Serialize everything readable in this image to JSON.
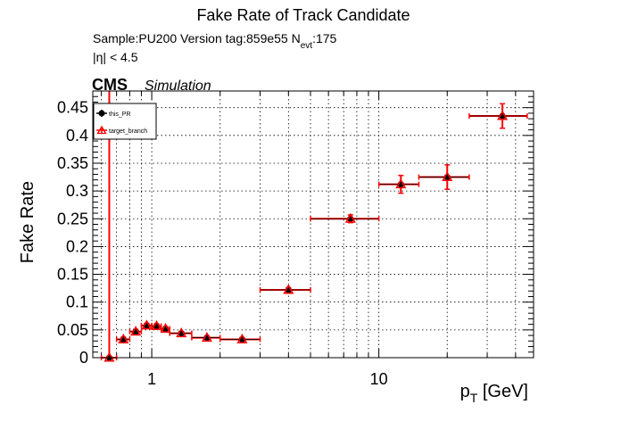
{
  "title": "Fake Rate of Track Candidate",
  "info": {
    "sample_line_pre": "Sample:PU200   Version tag:859e55  N",
    "nevt_sub": "evt",
    "nevt_value": ":175",
    "eta_cut": "|η| < 4.5"
  },
  "cms": {
    "label": "CMS",
    "sublabel": "Simulation"
  },
  "legend": [
    {
      "name": "this_PR",
      "color": "#000000",
      "marker": "circle"
    },
    {
      "name": "target_branch",
      "color": "#ff0000",
      "marker": "open-triangle"
    }
  ],
  "chart_data": {
    "type": "scatter",
    "title": "Fake Rate of Track Candidate",
    "xlabel": "p",
    "xlabel_sub": "T",
    "xlabel_unit": " [GeV]",
    "ylabel": "Fake Rate",
    "xscale": "log",
    "xlim": [
      0.55,
      48
    ],
    "ylim": [
      0,
      0.48
    ],
    "grid": true,
    "legend_position": "top-left",
    "xticks": [
      {
        "value": 1,
        "label": "1"
      },
      {
        "value": 10,
        "label": "10"
      }
    ],
    "yticks": [
      {
        "value": 0,
        "label": "0"
      },
      {
        "value": 0.05,
        "label": "0.05"
      },
      {
        "value": 0.1,
        "label": "0.1"
      },
      {
        "value": 0.15,
        "label": "0.15"
      },
      {
        "value": 0.2,
        "label": "0.2"
      },
      {
        "value": 0.25,
        "label": "0.25"
      },
      {
        "value": 0.3,
        "label": "0.3"
      },
      {
        "value": 0.35,
        "label": "0.35"
      },
      {
        "value": 0.4,
        "label": "0.4"
      },
      {
        "value": 0.45,
        "label": "0.45"
      }
    ],
    "bins": [
      {
        "xlo": 0.6,
        "xhi": 0.7,
        "x": 0.65,
        "y": 0.0,
        "yerr_lo": 0.0,
        "yerr_hi": 0.48
      },
      {
        "xlo": 0.7,
        "xhi": 0.8,
        "x": 0.75,
        "y": 0.033,
        "yerr_lo": 0.004,
        "yerr_hi": 0.004
      },
      {
        "xlo": 0.8,
        "xhi": 0.9,
        "x": 0.85,
        "y": 0.047,
        "yerr_lo": 0.004,
        "yerr_hi": 0.004
      },
      {
        "xlo": 0.9,
        "xhi": 1.0,
        "x": 0.95,
        "y": 0.058,
        "yerr_lo": 0.004,
        "yerr_hi": 0.004
      },
      {
        "xlo": 1.0,
        "xhi": 1.1,
        "x": 1.05,
        "y": 0.057,
        "yerr_lo": 0.004,
        "yerr_hi": 0.004
      },
      {
        "xlo": 1.1,
        "xhi": 1.2,
        "x": 1.15,
        "y": 0.052,
        "yerr_lo": 0.004,
        "yerr_hi": 0.004
      },
      {
        "xlo": 1.2,
        "xhi": 1.5,
        "x": 1.35,
        "y": 0.044,
        "yerr_lo": 0.003,
        "yerr_hi": 0.003
      },
      {
        "xlo": 1.5,
        "xhi": 2.0,
        "x": 1.75,
        "y": 0.036,
        "yerr_lo": 0.003,
        "yerr_hi": 0.003
      },
      {
        "xlo": 2.0,
        "xhi": 3.0,
        "x": 2.5,
        "y": 0.033,
        "yerr_lo": 0.003,
        "yerr_hi": 0.003
      },
      {
        "xlo": 3.0,
        "xhi": 5.0,
        "x": 4.0,
        "y": 0.122,
        "yerr_lo": 0.004,
        "yerr_hi": 0.004
      },
      {
        "xlo": 5.0,
        "xhi": 10.0,
        "x": 7.5,
        "y": 0.25,
        "yerr_lo": 0.007,
        "yerr_hi": 0.007
      },
      {
        "xlo": 10.0,
        "xhi": 15.0,
        "x": 12.5,
        "y": 0.312,
        "yerr_lo": 0.016,
        "yerr_hi": 0.016
      },
      {
        "xlo": 15.0,
        "xhi": 25.0,
        "x": 20.0,
        "y": 0.325,
        "yerr_lo": 0.022,
        "yerr_hi": 0.022
      },
      {
        "xlo": 25.0,
        "xhi": 45.0,
        "x": 35.0,
        "y": 0.435,
        "yerr_lo": 0.022,
        "yerr_hi": 0.022
      }
    ],
    "series": [
      {
        "name": "this_PR",
        "color": "#000000",
        "marker": "circle"
      },
      {
        "name": "target_branch",
        "color": "#ff0000",
        "marker": "open-triangle"
      }
    ]
  }
}
